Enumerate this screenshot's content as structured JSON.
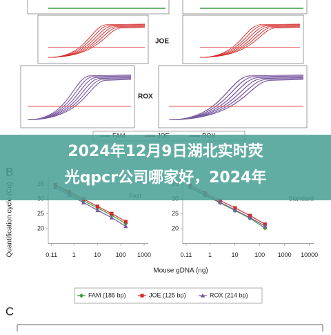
{
  "panel_a": {
    "labels": [
      "JOE",
      "ROX"
    ],
    "legend": [
      "FAM",
      "JOE",
      "ROX"
    ]
  },
  "banner": {
    "lines": [
      "2024年12月9日湖北实时荧",
      "光qpcr公司哪家好，2024年"
    ]
  },
  "panel_b": {
    "label": "B",
    "y_label": "Quantification cycle (Cq)",
    "x_label": "Mouse gDNA (ng)"
  },
  "panel_c": {
    "label": "C"
  },
  "chart_data": [
    {
      "type": "line",
      "title": "Fast",
      "log_x": true,
      "x": [
        0.16,
        0.64,
        2.56,
        10.24,
        40.96,
        163.84
      ],
      "xlim": [
        0.08,
        1500
      ],
      "xticks": [
        0.11,
        1,
        10,
        100,
        1000
      ],
      "ylim": [
        15,
        37
      ],
      "yticks": [
        20,
        25,
        30,
        35
      ],
      "series": [
        {
          "name": "FAM (185 bp)",
          "color": "#3f9a3f",
          "marker": "diamond",
          "values": [
            34.5,
            31.9,
            29.4,
            27.0,
            24.5,
            21.7
          ]
        },
        {
          "name": "JOE (125 bp)",
          "color": "#d42a2a",
          "marker": "square",
          "values": [
            34.8,
            32.4,
            30.0,
            27.5,
            25.1,
            22.4
          ]
        },
        {
          "name": "ROX (214 bp)",
          "color": "#7a5aa0",
          "marker": "triangle",
          "values": [
            33.9,
            31.3,
            28.8,
            26.2,
            23.7,
            20.8
          ]
        }
      ]
    },
    {
      "type": "line",
      "title": "Standard",
      "log_x": true,
      "x": [
        0.16,
        0.64,
        2.56,
        10.24,
        40.96,
        163.84
      ],
      "xlim": [
        0.08,
        15000
      ],
      "xticks": [
        0.11,
        1,
        10,
        100,
        1000,
        10000
      ],
      "ylim": [
        15,
        37
      ],
      "yticks": [
        20,
        25,
        30,
        35
      ],
      "series": [
        {
          "color": "#3f9a3f",
          "marker": "diamond",
          "values": [
            33.8,
            31.2,
            28.7,
            26.1,
            23.5,
            20.2
          ]
        },
        {
          "color": "#d42a2a",
          "marker": "square",
          "values": [
            34.6,
            32.0,
            29.5,
            27.0,
            24.4,
            21.5
          ]
        },
        {
          "color": "#7a5aa0",
          "marker": "triangle",
          "values": [
            34.0,
            31.4,
            28.9,
            26.3,
            23.7,
            20.9
          ]
        }
      ]
    }
  ]
}
